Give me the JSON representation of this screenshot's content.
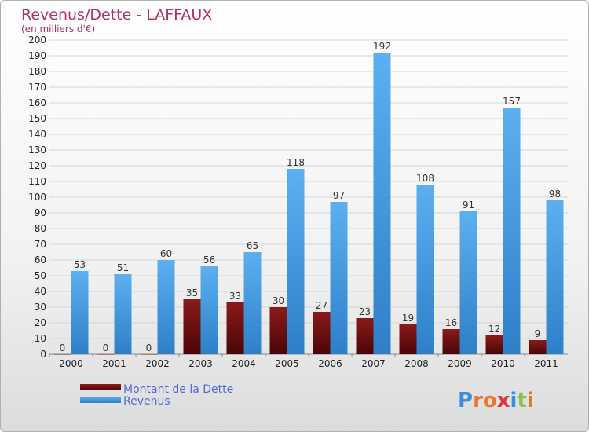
{
  "chart_data": {
    "type": "bar",
    "title": "Revenus/Dette - LAFFAUX",
    "subtitle": "(en milliers d'€)",
    "categories": [
      "2000",
      "2001",
      "2002",
      "2003",
      "2004",
      "2005",
      "2006",
      "2007",
      "2008",
      "2009",
      "2010",
      "2011"
    ],
    "series": [
      {
        "name": "Montant de la Dette",
        "color": "#7a0e14",
        "values": [
          0,
          0,
          0,
          35,
          33,
          30,
          27,
          23,
          19,
          16,
          12,
          9
        ]
      },
      {
        "name": "Revenus",
        "color": "#4aa0e6",
        "values": [
          53,
          51,
          60,
          56,
          65,
          118,
          97,
          192,
          108,
          91,
          157,
          98
        ]
      }
    ],
    "ylim": [
      0,
      200
    ],
    "ytick_step": 10,
    "grid": true,
    "legend_position": "bottom-left"
  },
  "logo": {
    "letters": [
      "P",
      "r",
      "o",
      "x",
      "i",
      "t",
      "i"
    ],
    "colors": [
      "#3a8fd9",
      "#e8762b",
      "#e8762b",
      "#d93a3a",
      "#3a8fd9",
      "#8bc34a",
      "#e8762b"
    ]
  }
}
